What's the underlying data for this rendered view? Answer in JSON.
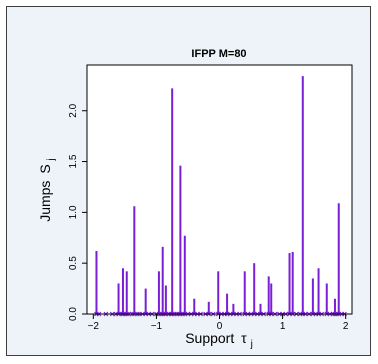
{
  "chart_data": {
    "type": "bar",
    "title": "IFPP M=80",
    "xlabel": "Support",
    "xlabel_symbol": "τ",
    "xlabel_sub": "j",
    "ylabel": "Jumps",
    "ylabel_symbol": "S",
    "ylabel_sub": "j",
    "xlim": [
      -2.1,
      2.1
    ],
    "ylim": [
      0.0,
      2.45
    ],
    "x_ticks": [
      -2,
      -1,
      0,
      1,
      2
    ],
    "x_tick_labels": [
      "−2",
      "−1",
      "0",
      "1",
      "2"
    ],
    "y_ticks": [
      0.0,
      0.5,
      1.0,
      1.5,
      2.0
    ],
    "y_tick_labels": [
      "0.0",
      "0.5",
      "1.0",
      "1.5",
      "2.0"
    ],
    "grid": false,
    "colors": {
      "series": "#7a1fd6",
      "panel_background": "#eef3f9",
      "plot_background": "#ffffff"
    },
    "series": [
      {
        "x": [
          -1.95,
          -1.6,
          -1.53,
          -1.47,
          -1.35,
          -1.17,
          -0.96,
          -0.9,
          -0.85,
          -0.75,
          -0.62,
          -0.55,
          -0.4,
          -0.17,
          -0.02,
          0.12,
          0.22,
          0.4,
          0.55,
          0.65,
          0.78,
          0.82,
          1.11,
          1.16,
          1.32,
          1.48,
          1.57,
          1.7,
          1.83,
          1.89
        ],
        "values": [
          0.62,
          0.3,
          0.45,
          0.42,
          1.06,
          0.25,
          0.42,
          0.66,
          0.28,
          2.22,
          1.46,
          0.77,
          0.15,
          0.12,
          0.42,
          0.2,
          0.1,
          0.42,
          0.5,
          0.1,
          0.37,
          0.3,
          0.6,
          0.61,
          2.34,
          0.35,
          0.45,
          0.3,
          0.15,
          1.09
        ]
      }
    ],
    "baseline_points_x": [
      -1.95,
      -1.91,
      -1.8,
      -1.7,
      -1.64,
      -1.6,
      -1.55,
      -1.53,
      -1.5,
      -1.47,
      -1.44,
      -1.38,
      -1.35,
      -1.3,
      -1.27,
      -1.22,
      -1.17,
      -1.12,
      -1.07,
      -1.0,
      -0.96,
      -0.93,
      -0.9,
      -0.87,
      -0.85,
      -0.8,
      -0.77,
      -0.75,
      -0.72,
      -0.68,
      -0.65,
      -0.62,
      -0.58,
      -0.55,
      -0.5,
      -0.45,
      -0.4,
      -0.35,
      -0.3,
      -0.22,
      -0.17,
      -0.1,
      -0.02,
      0.03,
      0.08,
      0.12,
      0.17,
      0.22,
      0.27,
      0.32,
      0.4,
      0.45,
      0.5,
      0.55,
      0.6,
      0.65,
      0.7,
      0.78,
      0.82,
      0.88,
      0.95,
      1.0,
      1.05,
      1.11,
      1.16,
      1.22,
      1.28,
      1.32,
      1.36,
      1.42,
      1.48,
      1.53,
      1.57,
      1.62,
      1.7,
      1.75,
      1.8,
      1.83,
      1.86,
      1.89,
      1.94,
      1.98
    ]
  }
}
